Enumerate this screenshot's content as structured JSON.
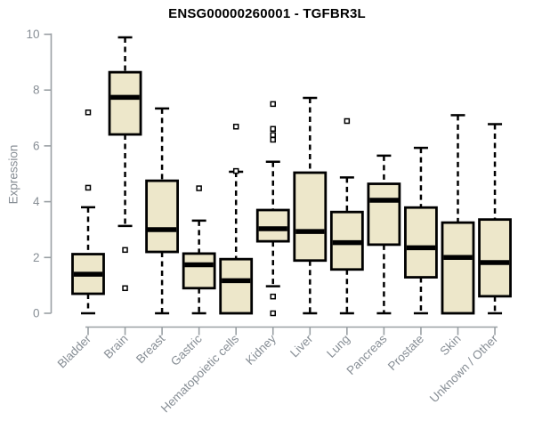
{
  "chart_data": {
    "type": "boxplot",
    "title": "ENSG00000260001 - TGFBR3L",
    "xlabel": "",
    "ylabel": "Expression",
    "ylim": [
      0,
      10
    ],
    "yticks": [
      0,
      2,
      4,
      6,
      8,
      10
    ],
    "grid": false,
    "legend": "none",
    "box_fill": "#EDE7CA",
    "box_border": "#000000",
    "axis_color": "#9aa0a4",
    "label_color": "#878e95",
    "categories": [
      "Bladder",
      "Brain",
      "Breast",
      "Gastric",
      "Hematopoietic cells",
      "Kidney",
      "Liver",
      "Lung",
      "Pancreas",
      "Prostate",
      "Skin",
      "Unknown / Other"
    ],
    "series": [
      {
        "name": "Bladder",
        "whisker_low": 0.0,
        "q1": 0.7,
        "median": 1.4,
        "q3": 2.12,
        "whisker_high": 3.8,
        "outliers": [
          7.2,
          4.5
        ]
      },
      {
        "name": "Brain",
        "whisker_low": 3.13,
        "q1": 6.41,
        "median": 7.74,
        "q3": 8.64,
        "whisker_high": 9.89,
        "outliers": [
          2.27,
          0.9
        ]
      },
      {
        "name": "Breast",
        "whisker_low": 0.0,
        "q1": 2.2,
        "median": 3.0,
        "q3": 4.75,
        "whisker_high": 7.34,
        "outliers": []
      },
      {
        "name": "Gastric",
        "whisker_low": 0.0,
        "q1": 0.9,
        "median": 1.74,
        "q3": 2.14,
        "whisker_high": 3.32,
        "outliers": [
          4.48
        ]
      },
      {
        "name": "Hematopoietic cells",
        "whisker_low": null,
        "q1": 0.0,
        "median": 1.17,
        "q3": 1.94,
        "whisker_high": 5.07,
        "outliers": [
          6.69,
          5.1
        ]
      },
      {
        "name": "Kidney",
        "whisker_low": 0.97,
        "q1": 2.58,
        "median": 3.03,
        "q3": 3.7,
        "whisker_high": 5.43,
        "outliers": [
          7.5,
          6.61,
          6.39,
          6.22,
          0.6,
          0.0
        ]
      },
      {
        "name": "Liver",
        "whisker_low": 0.0,
        "q1": 1.89,
        "median": 2.93,
        "q3": 5.04,
        "whisker_high": 7.72,
        "outliers": []
      },
      {
        "name": "Lung",
        "whisker_low": 0.0,
        "q1": 1.57,
        "median": 2.53,
        "q3": 3.63,
        "whisker_high": 4.87,
        "outliers": [
          6.89
        ]
      },
      {
        "name": "Pancreas",
        "whisker_low": 0.0,
        "q1": 2.46,
        "median": 4.05,
        "q3": 4.64,
        "whisker_high": 5.65,
        "outliers": []
      },
      {
        "name": "Prostate",
        "whisker_low": 0.0,
        "q1": 1.29,
        "median": 2.35,
        "q3": 3.79,
        "whisker_high": 5.93,
        "outliers": []
      },
      {
        "name": "Skin",
        "whisker_low": null,
        "q1": 0.0,
        "median": 2.0,
        "q3": 3.25,
        "whisker_high": 7.1,
        "outliers": []
      },
      {
        "name": "Unknown / Other",
        "whisker_low": 0.0,
        "q1": 0.61,
        "median": 1.82,
        "q3": 3.36,
        "whisker_high": 6.78,
        "outliers": []
      }
    ]
  }
}
